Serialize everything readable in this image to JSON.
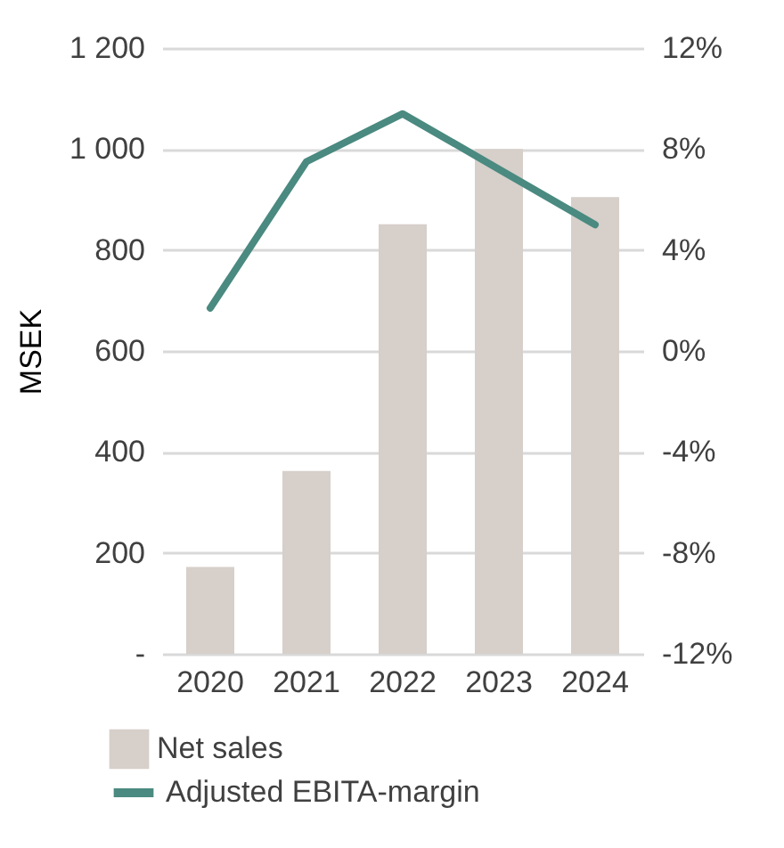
{
  "chart_data": {
    "type": "bar",
    "categories": [
      "2020",
      "2021",
      "2022",
      "2023",
      "2024"
    ],
    "ylabel": "MSEK",
    "ylim": [
      0,
      1200
    ],
    "yticks": [
      {
        "value": 0,
        "label": "-"
      },
      200,
      400,
      600,
      800,
      {
        "value": 1000,
        "label": "1 000"
      },
      {
        "value": 1200,
        "label": "1 200"
      }
    ],
    "y2lim": [
      -12,
      12
    ],
    "y2ticks": [
      {
        "value": -12,
        "label": "-12%"
      },
      {
        "value": -8,
        "label": "-8%"
      },
      {
        "value": -4,
        "label": "-4%"
      },
      {
        "value": 0,
        "label": "0%"
      },
      {
        "value": 4,
        "label": "4%"
      },
      {
        "value": 8,
        "label": "8%"
      },
      {
        "value": 12,
        "label": "12%"
      }
    ],
    "series": [
      {
        "name": "Net sales",
        "color": "#d6cfca",
        "values": [
          172,
          362,
          851,
          1000,
          905
        ]
      },
      {
        "name": "Adjusted EBITA-margin",
        "type": "line",
        "axis": "y2",
        "color": "#4a8a80",
        "values": [
          1.7,
          7.5,
          9.4,
          7.2,
          5.0
        ]
      }
    ],
    "grid": "y",
    "legend": "bottom"
  }
}
